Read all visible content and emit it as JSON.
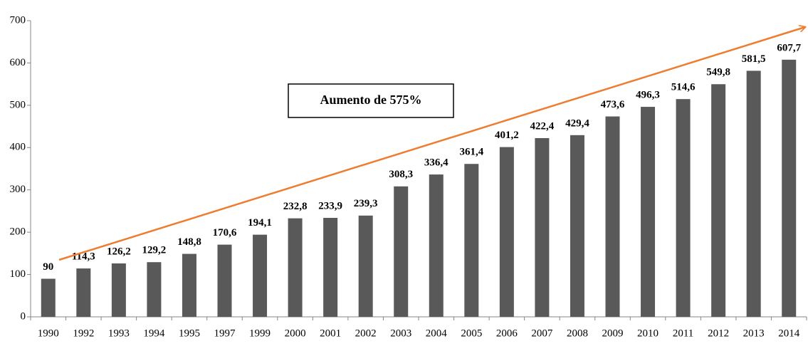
{
  "chart_data": {
    "type": "bar",
    "categories": [
      "1990",
      "1992",
      "1993",
      "1994",
      "1995",
      "1997",
      "1999",
      "2000",
      "2001",
      "2002",
      "2003",
      "2004",
      "2005",
      "2006",
      "2007",
      "2008",
      "2009",
      "2010",
      "2011",
      "2012",
      "2013",
      "2014"
    ],
    "values": [
      90,
      114.3,
      126.2,
      129.2,
      148.8,
      170.6,
      194.1,
      232.8,
      233.9,
      239.3,
      308.3,
      336.4,
      361.4,
      401.2,
      422.4,
      429.4,
      473.6,
      496.3,
      514.6,
      549.8,
      581.5,
      607.7
    ],
    "value_labels": [
      "90",
      "114,3",
      "126,2",
      "129,2",
      "148,8",
      "170,6",
      "194,1",
      "232,8",
      "233,9",
      "239,3",
      "308,3",
      "336,4",
      "361,4",
      "401,2",
      "422,4",
      "429,4",
      "473,6",
      "496,3",
      "514,6",
      "549,8",
      "581,5",
      "607,7"
    ],
    "color": "#595959",
    "ylim": [
      0,
      700
    ],
    "yticks": [
      0,
      100,
      200,
      300,
      400,
      500,
      600,
      700
    ],
    "grid": false,
    "annotation": "Aumento de 575%"
  }
}
